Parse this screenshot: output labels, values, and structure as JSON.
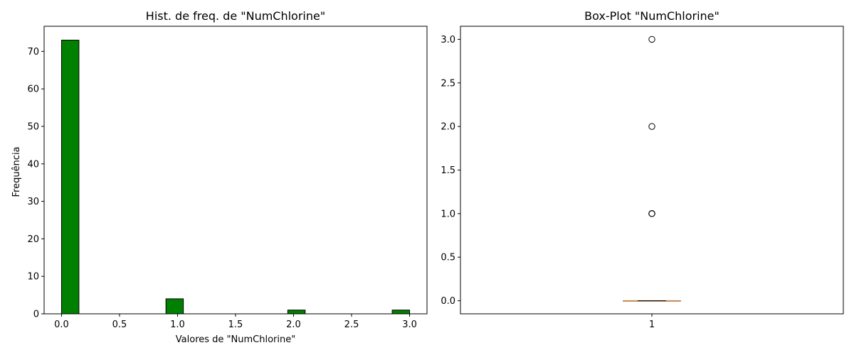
{
  "chart_data": [
    {
      "type": "bar",
      "title": "Hist. de freq. de \"NumChlorine\"",
      "xlabel": "Valores de \"NumChlorine\"",
      "ylabel": "Frequência",
      "xlim": [
        -0.15,
        3.15
      ],
      "ylim": [
        0,
        76.7
      ],
      "xticks": [
        "0.0",
        "0.5",
        "1.0",
        "1.5",
        "2.0",
        "2.5",
        "3.0"
      ],
      "yticks": [
        "0",
        "10",
        "20",
        "30",
        "40",
        "50",
        "60",
        "70"
      ],
      "bins": [
        {
          "x0": 0.0,
          "x1": 0.15,
          "value": 73
        },
        {
          "x0": 0.9,
          "x1": 1.05,
          "value": 4
        },
        {
          "x0": 1.95,
          "x1": 2.1,
          "value": 1
        },
        {
          "x0": 2.85,
          "x1": 3.0,
          "value": 1
        }
      ],
      "bar_color": "#008000",
      "edge_color": "#000000",
      "grid": false
    },
    {
      "type": "box",
      "title": "Box-Plot \"NumChlorine\"",
      "categories": [
        "1"
      ],
      "ylim": [
        -0.15,
        3.15
      ],
      "yticks": [
        "0.0",
        "0.5",
        "1.0",
        "1.5",
        "2.0",
        "2.5",
        "3.0"
      ],
      "median": 0,
      "q1": 0,
      "q3": 0,
      "whisker_low": 0,
      "whisker_high": 0,
      "outliers": [
        1,
        1,
        1,
        1,
        2,
        3
      ],
      "median_color": "#d9843b",
      "grid": false
    }
  ]
}
